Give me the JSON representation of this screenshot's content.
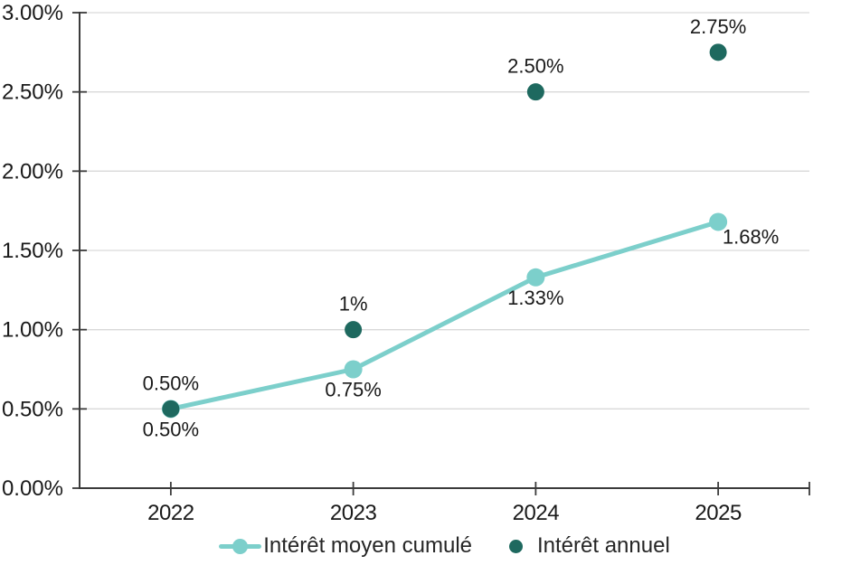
{
  "chart_data": {
    "type": "line",
    "title": "",
    "categories": [
      "2022",
      "2023",
      "2024",
      "2025"
    ],
    "series": [
      {
        "name": "Intérêt moyen cumulé",
        "type": "line",
        "color": "#7CCFCB",
        "values": [
          0.5,
          0.75,
          1.33,
          1.68
        ],
        "point_labels": [
          "0.50%",
          "0.75%",
          "1.33%",
          "1.68%"
        ],
        "point_label_positions": [
          "above",
          "below",
          "below",
          "below-right"
        ]
      },
      {
        "name": "Intérêt annuel",
        "type": "scatter",
        "color": "#1E695F",
        "values": [
          0.5,
          1.0,
          2.5,
          2.75
        ],
        "point_labels": [
          "0.50%",
          "1%",
          "2.50%",
          "2.75%"
        ],
        "point_label_positions": [
          "below",
          "above",
          "above",
          "above"
        ]
      }
    ],
    "y_axis": {
      "min": 0,
      "max": 3,
      "tick_step": 0.5,
      "tick_labels": [
        "0.00%",
        "0.50%",
        "1.00%",
        "1.50%",
        "2.00%",
        "2.50%",
        "3.00%"
      ]
    },
    "x_axis": {
      "tick_labels": [
        "2022",
        "2023",
        "2024",
        "2025"
      ]
    },
    "grid": {
      "horizontal": true,
      "color": "#D9D9D9"
    },
    "axis_color": "#3B3B3B",
    "label_color": "#1A1A1A",
    "legend": {
      "position": "bottom",
      "items": [
        {
          "label": "Intérêt moyen cumulé",
          "marker": "line-dot",
          "color": "#7CCFCB"
        },
        {
          "label": "Intérêt annuel",
          "marker": "dot",
          "color": "#1E695F"
        }
      ]
    }
  }
}
